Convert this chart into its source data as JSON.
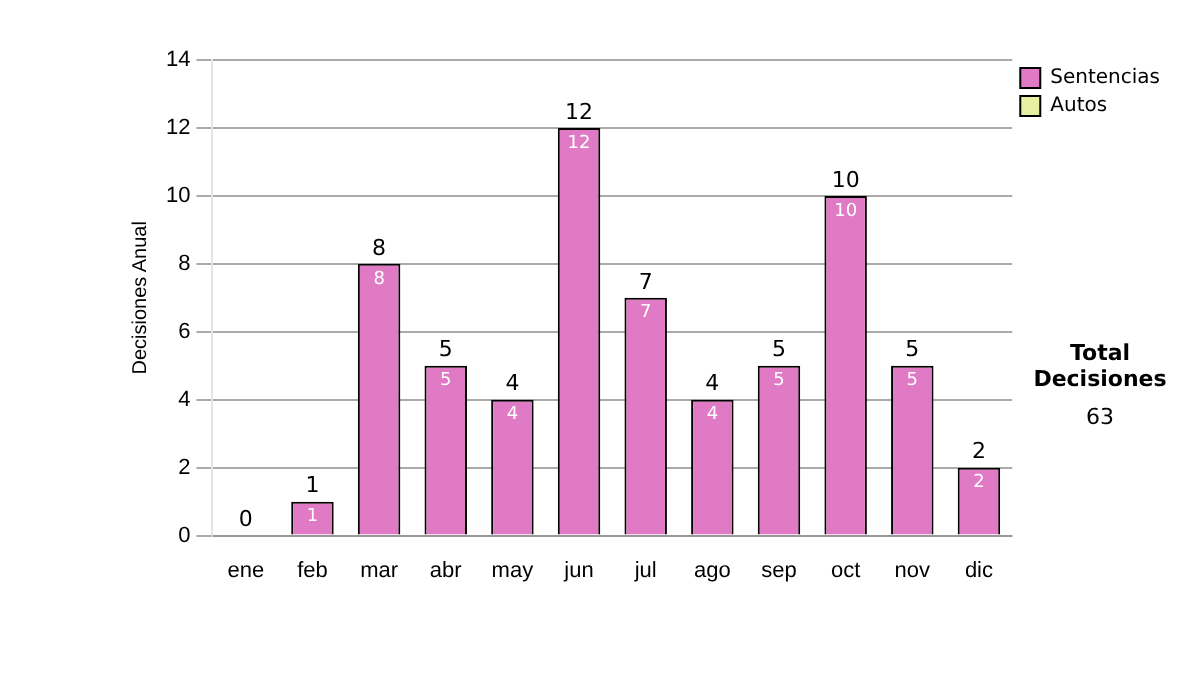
{
  "chart_data": {
    "type": "bar",
    "ylabel": "Decisiones Anual",
    "categories": [
      "ene",
      "feb",
      "mar",
      "abr",
      "may",
      "jun",
      "jul",
      "ago",
      "sep",
      "oct",
      "nov",
      "dic"
    ],
    "series": [
      {
        "name": "Sentencias",
        "color": "#e07ac4",
        "values": [
          0,
          1,
          8,
          5,
          4,
          12,
          7,
          4,
          5,
          10,
          5,
          2
        ],
        "value_labels": [
          null,
          "1",
          "8",
          "5",
          "4",
          "12",
          "7",
          "4",
          "5",
          "10",
          "5",
          "2"
        ]
      },
      {
        "name": "Autos",
        "color": "#e6f0a0",
        "values": [
          0,
          0,
          0,
          0,
          0,
          0,
          0,
          0,
          0,
          0,
          0,
          0
        ]
      }
    ],
    "stacked": true,
    "ylim": [
      0,
      14
    ],
    "yticks": [
      0,
      2,
      4,
      6,
      8,
      10,
      12,
      14
    ],
    "grid": "y",
    "legend": "right",
    "totals": [
      "0",
      "1",
      "8",
      "5",
      "4",
      "12",
      "7",
      "4",
      "5",
      "10",
      "5",
      "2"
    ],
    "annotations": [
      "Total Decisiones",
      "63"
    ]
  }
}
